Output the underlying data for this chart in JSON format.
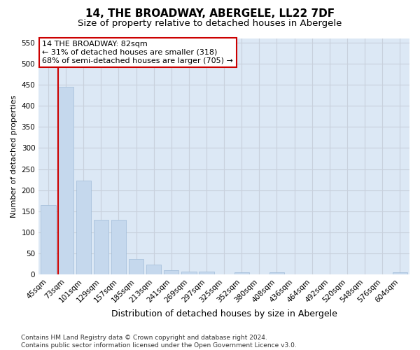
{
  "title1": "14, THE BROADWAY, ABERGELE, LL22 7DF",
  "title2": "Size of property relative to detached houses in Abergele",
  "xlabel": "Distribution of detached houses by size in Abergele",
  "ylabel": "Number of detached properties",
  "categories": [
    "45sqm",
    "73sqm",
    "101sqm",
    "129sqm",
    "157sqm",
    "185sqm",
    "213sqm",
    "241sqm",
    "269sqm",
    "297sqm",
    "325sqm",
    "352sqm",
    "380sqm",
    "408sqm",
    "436sqm",
    "464sqm",
    "492sqm",
    "520sqm",
    "548sqm",
    "576sqm",
    "604sqm"
  ],
  "values": [
    165,
    445,
    222,
    130,
    130,
    37,
    24,
    10,
    6,
    6,
    0,
    5,
    0,
    5,
    0,
    0,
    0,
    0,
    0,
    0,
    5
  ],
  "bar_color": "#c5d8ed",
  "bar_edge_color": "#a0bcd8",
  "grid_color": "#c8d0dc",
  "bg_color": "#dce8f5",
  "vline_color": "#cc0000",
  "vline_x_bar_index": 1,
  "annotation_line1": "14 THE BROADWAY: 82sqm",
  "annotation_line2": "← 31% of detached houses are smaller (318)",
  "annotation_line3": "68% of semi-detached houses are larger (705) →",
  "annotation_box_color": "#ffffff",
  "annotation_box_edge": "#cc0000",
  "ylim": [
    0,
    560
  ],
  "yticks": [
    0,
    50,
    100,
    150,
    200,
    250,
    300,
    350,
    400,
    450,
    500,
    550
  ],
  "footer": "Contains HM Land Registry data © Crown copyright and database right 2024.\nContains public sector information licensed under the Open Government Licence v3.0.",
  "title1_fontsize": 11,
  "title2_fontsize": 9.5,
  "xlabel_fontsize": 9,
  "ylabel_fontsize": 8,
  "tick_fontsize": 7.5,
  "annotation_fontsize": 8,
  "footer_fontsize": 6.5
}
